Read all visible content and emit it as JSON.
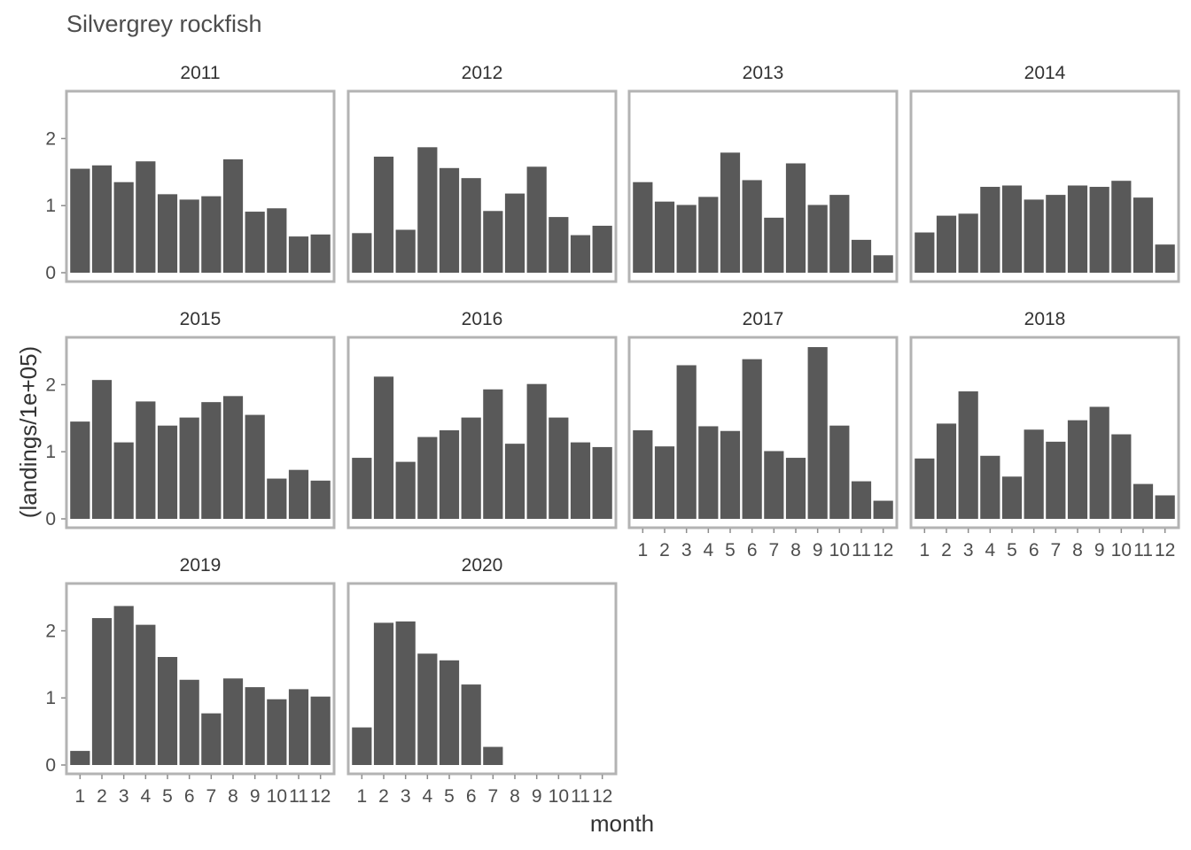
{
  "chart_data": {
    "type": "bar",
    "title": "Silvergrey rockfish",
    "xlabel": "month",
    "ylabel": "(landings/1e+05)",
    "facet_by": "year",
    "categories": [
      1,
      2,
      3,
      4,
      5,
      6,
      7,
      8,
      9,
      10,
      11,
      12
    ],
    "ylim": [
      0,
      2.6
    ],
    "yticks": [
      0,
      1,
      2
    ],
    "grid": false,
    "legend": "none",
    "bar_color": "#595959",
    "panel_border_color": "#b3b3b3",
    "panels": [
      {
        "year": "2011",
        "values": [
          1.55,
          1.6,
          1.35,
          1.66,
          1.17,
          1.09,
          1.14,
          1.69,
          0.91,
          0.96,
          0.54,
          0.57
        ]
      },
      {
        "year": "2012",
        "values": [
          0.59,
          1.73,
          0.64,
          1.87,
          1.56,
          1.41,
          0.92,
          1.18,
          1.58,
          0.83,
          0.56,
          0.7
        ]
      },
      {
        "year": "2013",
        "values": [
          1.35,
          1.06,
          1.01,
          1.13,
          1.79,
          1.38,
          0.82,
          1.63,
          1.01,
          1.16,
          0.49,
          0.26
        ]
      },
      {
        "year": "2014",
        "values": [
          0.6,
          0.85,
          0.88,
          1.28,
          1.3,
          1.09,
          1.16,
          1.3,
          1.28,
          1.37,
          1.12,
          0.42
        ]
      },
      {
        "year": "2015",
        "values": [
          1.45,
          2.07,
          1.14,
          1.75,
          1.39,
          1.51,
          1.74,
          1.83,
          1.55,
          0.6,
          0.73,
          0.57
        ]
      },
      {
        "year": "2016",
        "values": [
          0.91,
          2.12,
          0.85,
          1.22,
          1.32,
          1.51,
          1.93,
          1.12,
          2.01,
          1.51,
          1.14,
          1.07
        ]
      },
      {
        "year": "2017",
        "values": [
          1.32,
          1.08,
          2.29,
          1.38,
          1.31,
          2.38,
          1.01,
          0.91,
          2.56,
          1.39,
          0.56,
          0.27
        ]
      },
      {
        "year": "2018",
        "values": [
          0.9,
          1.42,
          1.9,
          0.94,
          0.63,
          1.33,
          1.15,
          1.47,
          1.67,
          1.26,
          0.52,
          0.35
        ]
      },
      {
        "year": "2019",
        "values": [
          0.21,
          2.19,
          2.37,
          2.09,
          1.61,
          1.27,
          0.77,
          1.29,
          1.16,
          0.98,
          1.13,
          1.02
        ]
      },
      {
        "year": "2020",
        "values": [
          0.56,
          2.12,
          2.14,
          1.66,
          1.56,
          1.2,
          0.27,
          null,
          null,
          null,
          null,
          null
        ]
      }
    ]
  }
}
